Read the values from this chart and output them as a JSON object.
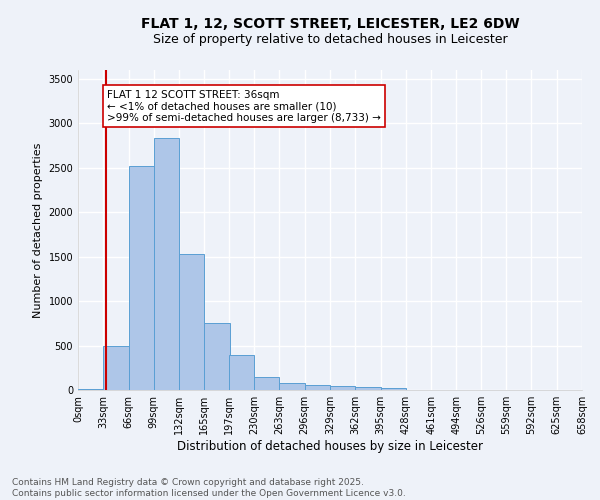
{
  "title": "FLAT 1, 12, SCOTT STREET, LEICESTER, LE2 6DW",
  "subtitle": "Size of property relative to detached houses in Leicester",
  "xlabel": "Distribution of detached houses by size in Leicester",
  "ylabel": "Number of detached properties",
  "bar_values": [
    10,
    500,
    2520,
    2830,
    1530,
    750,
    390,
    150,
    75,
    55,
    50,
    30,
    25,
    0,
    0,
    0,
    0,
    0,
    0,
    0
  ],
  "bar_left_edges": [
    0,
    33,
    66,
    99,
    132,
    165,
    197,
    230,
    263,
    296,
    329,
    362,
    395,
    428,
    461,
    494,
    526,
    559,
    592,
    625
  ],
  "bin_width": 33,
  "x_tick_labels": [
    "0sqm",
    "33sqm",
    "66sqm",
    "99sqm",
    "132sqm",
    "165sqm",
    "197sqm",
    "230sqm",
    "263sqm",
    "296sqm",
    "329sqm",
    "362sqm",
    "395sqm",
    "428sqm",
    "461sqm",
    "494sqm",
    "526sqm",
    "559sqm",
    "592sqm",
    "625sqm",
    "658sqm"
  ],
  "bar_color": "#aec6e8",
  "bar_edge_color": "#5a9fd4",
  "vline_x": 36,
  "vline_color": "#cc0000",
  "annotation_text": "FLAT 1 12 SCOTT STREET: 36sqm\n← <1% of detached houses are smaller (10)\n>99% of semi-detached houses are larger (8,733) →",
  "annotation_box_color": "#ffffff",
  "annotation_border_color": "#cc0000",
  "ylim": [
    0,
    3600
  ],
  "yticks": [
    0,
    500,
    1000,
    1500,
    2000,
    2500,
    3000,
    3500
  ],
  "background_color": "#eef2f9",
  "grid_color": "#ffffff",
  "footer_line1": "Contains HM Land Registry data © Crown copyright and database right 2025.",
  "footer_line2": "Contains public sector information licensed under the Open Government Licence v3.0.",
  "title_fontsize": 10,
  "subtitle_fontsize": 9,
  "xlabel_fontsize": 8.5,
  "ylabel_fontsize": 8,
  "tick_fontsize": 7,
  "footer_fontsize": 6.5,
  "annot_fontsize": 7.5
}
